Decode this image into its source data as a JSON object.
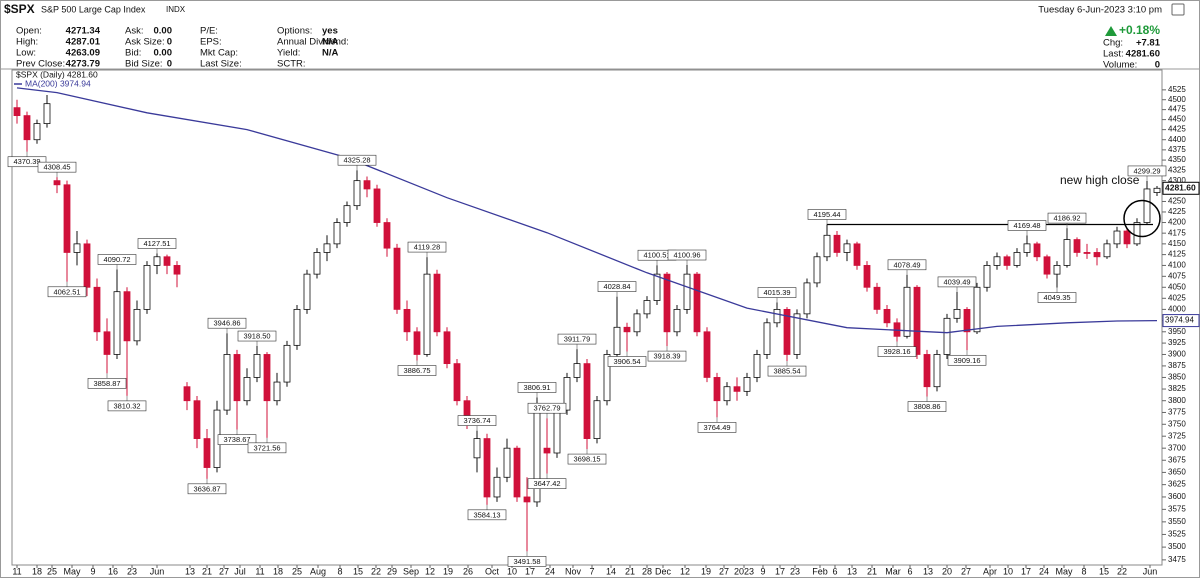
{
  "header": {
    "symbol": "$SPX",
    "name": "S&P 500 Large Cap Index",
    "exchange": "INDX",
    "datetime": "Tuesday  6-Jun-2023  3:10 pm",
    "columns": [
      [
        {
          "label": "Open:",
          "value": "4271.34"
        },
        {
          "label": "High:",
          "value": "4287.01"
        },
        {
          "label": "Low:",
          "value": "4263.09"
        },
        {
          "label": "Prev Close:",
          "value": "4273.79"
        }
      ],
      [
        {
          "label": "Ask:",
          "value": "0.00"
        },
        {
          "label": "Ask Size:",
          "value": "0"
        },
        {
          "label": "Bid:",
          "value": "0.00"
        },
        {
          "label": "Bid Size:",
          "value": "0"
        }
      ],
      [
        {
          "label": "P/E:"
        },
        {
          "label": "EPS:"
        },
        {
          "label": "Mkt Cap:"
        },
        {
          "label": "Last Size:"
        }
      ],
      [
        {
          "label": "Options:",
          "value": "yes"
        },
        {
          "label": "Annual Dividend:",
          "value": "N/A"
        },
        {
          "label": "Yield:",
          "value": "N/A"
        },
        {
          "label": "SCTR:"
        }
      ]
    ],
    "change_pct": "+0.18%",
    "quote": [
      {
        "label": "Chg:",
        "value": "+7.81"
      },
      {
        "label": "Last:",
        "value": "4281.60"
      },
      {
        "label": "Volume:",
        "value": "0"
      }
    ]
  },
  "chart_data": {
    "type": "candlestick",
    "name": "$SPX (Daily) 4281.60",
    "price_label": "4281.60",
    "up_color": "#ffffff",
    "down_color": "#d0103a",
    "open": [
      4480,
      4460,
      4400,
      4440,
      4300,
      4290,
      4130,
      4150,
      4050,
      3950,
      3900,
      4040,
      3930,
      4000,
      4100,
      4120,
      4100,
      3830,
      3800,
      3720,
      3660,
      3780,
      3900,
      3800,
      3850,
      3900,
      3800,
      3840,
      3920,
      4000,
      4080,
      4130,
      4150,
      4200,
      4240,
      4300,
      4280,
      4200,
      4140,
      4000,
      3950,
      3900,
      4080,
      3950,
      3880,
      3800,
      3680,
      3720,
      3600,
      3640,
      3700,
      3600,
      3590,
      3700,
      3690,
      3780,
      3850,
      3880,
      3720,
      3800,
      3900,
      3960,
      3950,
      3990,
      4020,
      4080,
      3950,
      4000,
      4080,
      3950,
      3850,
      3800,
      3830,
      3820,
      3850,
      3900,
      3970,
      4000,
      3900,
      3990,
      4060,
      4120,
      4170,
      4130,
      4150,
      4100,
      4050,
      4000,
      3970,
      3940,
      4050,
      3900,
      3830,
      3900,
      3980,
      4000,
      3950,
      4050,
      4100,
      4120,
      4100,
      4130,
      4150,
      4120,
      4080,
      4100,
      4160,
      4130,
      4130,
      4120,
      4150,
      4180,
      4150,
      4200,
      4271.34
    ],
    "high": [
      4500,
      4470,
      4450,
      4512,
      4308.45,
      4300,
      4180,
      4160,
      4070,
      3980,
      4090.72,
      4050,
      4020,
      4110,
      4127.51,
      4125,
      4110,
      3840,
      3810,
      3740,
      3800,
      3946.86,
      3910,
      3870,
      3918.5,
      3905,
      3860,
      3930,
      4010,
      4090,
      4140,
      4170,
      4210,
      4250,
      4325.28,
      4310,
      4290,
      4210,
      4150,
      4020,
      3960,
      4119.28,
      4090,
      3960,
      3890,
      3810,
      3736.74,
      3730,
      3660,
      3720,
      3705,
      3640,
      3806.91,
      3762.79,
      3790,
      3860,
      3911.79,
      3890,
      3810,
      3910,
      4028.84,
      3970,
      4000,
      4030,
      4100.51,
      4085,
      4010,
      4100.96,
      4085,
      3960,
      3860,
      3840,
      3850,
      3860,
      3910,
      3980,
      4015.39,
      4005,
      4000,
      4070,
      4130,
      4195.44,
      4180,
      4160,
      4155,
      4110,
      4060,
      4010,
      3980,
      4078.49,
      4055,
      3910,
      3910,
      3990,
      4039.49,
      4005,
      4060,
      4110,
      4130,
      4125,
      4140,
      4169.48,
      4155,
      4125,
      4110,
      4186.92,
      4165,
      4150,
      4140,
      4160,
      4190,
      4185,
      4210,
      4299.29,
      4287.01
    ],
    "low": [
      4440,
      4370.39,
      4390,
      4430,
      4270,
      4062.51,
      4100,
      4030,
      3930,
      3858.87,
      3890,
      3810.32,
      3920,
      3990,
      4080,
      4080,
      4050,
      3780,
      3700,
      3636.87,
      3650,
      3770,
      3738.67,
      3790,
      3840,
      3721.56,
      3790,
      3830,
      3910,
      3990,
      4070,
      4110,
      4140,
      4190,
      4230,
      4260,
      4190,
      4120,
      3990,
      3930,
      3886.75,
      3895,
      3940,
      3870,
      3790,
      3740,
      3650,
      3584.13,
      3590,
      3630,
      3590,
      3491.58,
      3580,
      3647.42,
      3680,
      3770,
      3840,
      3698.15,
      3710,
      3790,
      3895,
      3906.54,
      3940,
      3980,
      4010,
      3918.39,
      3940,
      3990,
      3940,
      3840,
      3764.49,
      3790,
      3800,
      3810,
      3840,
      3890,
      3960,
      3885.54,
      3890,
      3980,
      4050,
      4110,
      4120,
      4110,
      4090,
      4040,
      3990,
      3960,
      3928.16,
      3935,
      3890,
      3808.86,
      3820,
      3890,
      3970,
      3909.16,
      3945,
      4040,
      4090,
      4090,
      4095,
      4120,
      4110,
      4070,
      4049.35,
      4095,
      4120,
      4115,
      4100,
      4115,
      4140,
      4140,
      4145,
      4195,
      4263.09
    ],
    "close": [
      4460,
      4400,
      4440,
      4490,
      4290,
      4130,
      4150,
      4050,
      3950,
      3900,
      4040,
      3930,
      4000,
      4100,
      4120,
      4100,
      4080,
      3800,
      3720,
      3660,
      3780,
      3900,
      3800,
      3850,
      3900,
      3800,
      3840,
      3920,
      4000,
      4080,
      4130,
      4150,
      4200,
      4240,
      4300,
      4280,
      4200,
      4140,
      4000,
      3950,
      3900,
      4080,
      3950,
      3880,
      3800,
      3760,
      3720,
      3600,
      3640,
      3700,
      3600,
      3590,
      3780,
      3690,
      3780,
      3850,
      3880,
      3720,
      3800,
      3900,
      3960,
      3950,
      3990,
      4020,
      4080,
      3950,
      4000,
      4080,
      3950,
      3850,
      3800,
      3830,
      3820,
      3850,
      3900,
      3970,
      4000,
      3900,
      3990,
      4060,
      4120,
      4170,
      4130,
      4150,
      4100,
      4050,
      4000,
      3970,
      3940,
      4050,
      3900,
      3830,
      3900,
      3980,
      4000,
      3950,
      4050,
      4100,
      4120,
      4100,
      4130,
      4150,
      4120,
      4080,
      4100,
      4160,
      4130,
      4130,
      4120,
      4150,
      4180,
      4150,
      4200,
      4280,
      4281.6
    ],
    "ma": {
      "name": "MA(200) 3974.94",
      "price_label": "3974.94",
      "color": "#3a3a9a",
      "x": [
        0,
        4,
        13,
        23,
        33,
        43,
        53,
        63,
        73,
        83,
        93,
        98,
        105,
        110,
        114
      ],
      "values": [
        4530,
        4518,
        4467,
        4425,
        4356,
        4259,
        4176,
        4083,
        4003,
        3959,
        3948,
        3962,
        3970,
        3974,
        3974.94
      ]
    },
    "annotations": [
      {
        "x": 1,
        "value": 4370.39
      },
      {
        "x": 4,
        "value": 4308.45
      },
      {
        "x": 5,
        "value": 4062.51
      },
      {
        "x": 9,
        "value": 3858.87
      },
      {
        "x": 10,
        "value": 4090.72
      },
      {
        "x": 11,
        "value": 3810.32
      },
      {
        "x": 14,
        "value": 4127.51
      },
      {
        "x": 19,
        "value": 3636.87
      },
      {
        "x": 21,
        "value": 3946.86
      },
      {
        "x": 22,
        "value": 3738.67
      },
      {
        "x": 24,
        "value": 3918.5,
        "label": "3918.50"
      },
      {
        "x": 25,
        "value": 3721.56
      },
      {
        "x": 34,
        "value": 4325.28
      },
      {
        "x": 40,
        "value": 3886.75
      },
      {
        "x": 41,
        "value": 4119.28
      },
      {
        "x": 46,
        "value": 3736.74
      },
      {
        "x": 47,
        "value": 3584.13
      },
      {
        "x": 51,
        "value": 3491.58
      },
      {
        "x": 52,
        "value": 3806.91
      },
      {
        "x": 53,
        "value": 3762.79
      },
      {
        "x": 53,
        "value": 3647.42
      },
      {
        "x": 56,
        "value": 3911.79
      },
      {
        "x": 57,
        "value": 3698.15
      },
      {
        "x": 60,
        "value": 4028.84
      },
      {
        "x": 61,
        "value": 3906.54
      },
      {
        "x": 64,
        "value": 4100.51
      },
      {
        "x": 65,
        "value": 3918.39
      },
      {
        "x": 67,
        "value": 4100.96
      },
      {
        "x": 70,
        "value": 3764.49
      },
      {
        "x": 76,
        "value": 4015.39
      },
      {
        "x": 77,
        "value": 3885.54
      },
      {
        "x": 81,
        "value": 4195.44
      },
      {
        "x": 88,
        "value": 3928.16
      },
      {
        "x": 89,
        "value": 4078.49
      },
      {
        "x": 91,
        "value": 3808.86
      },
      {
        "x": 94,
        "value": 4039.49
      },
      {
        "x": 95,
        "value": 3909.16
      },
      {
        "x": 101,
        "value": 4169.48
      },
      {
        "x": 104,
        "value": 4049.35
      },
      {
        "x": 105,
        "value": 4186.92
      },
      {
        "x": 113,
        "value": 4299.29
      }
    ],
    "annotation_text": "new high close",
    "log": true,
    "grid": false,
    "xlim": [
      -0.5,
      114.5
    ],
    "ylim": [
      3465,
      4545
    ],
    "yticks": [
      3475,
      3500,
      3525,
      3550,
      3575,
      3600,
      3625,
      3650,
      3675,
      3700,
      3725,
      3750,
      3775,
      3800,
      3825,
      3850,
      3875,
      3900,
      3925,
      3950,
      3975,
      4000,
      4025,
      4050,
      4075,
      4100,
      4125,
      4150,
      4175,
      4200,
      4225,
      4250,
      4275,
      4300,
      4325,
      4350,
      4375,
      4400,
      4425,
      4450,
      4475,
      4500,
      4525
    ],
    "xticks": [
      {
        "value": 0,
        "label": "11"
      },
      {
        "value": 2,
        "label": "18"
      },
      {
        "value": 3.5,
        "label": "25"
      },
      {
        "value": 5.5,
        "label": "May"
      },
      {
        "value": 7.6,
        "label": "9"
      },
      {
        "value": 9.6,
        "label": "16"
      },
      {
        "value": 11.5,
        "label": "23"
      },
      {
        "value": 14,
        "label": "Jun"
      },
      {
        "value": 17.3,
        "label": "13"
      },
      {
        "value": 19,
        "label": "21"
      },
      {
        "value": 20.7,
        "label": "27"
      },
      {
        "value": 22.3,
        "label": "Jul"
      },
      {
        "value": 24.3,
        "label": "11"
      },
      {
        "value": 26.1,
        "label": "18"
      },
      {
        "value": 28,
        "label": "25"
      },
      {
        "value": 30.1,
        "label": "Aug"
      },
      {
        "value": 32.3,
        "label": "8"
      },
      {
        "value": 34.1,
        "label": "15"
      },
      {
        "value": 35.9,
        "label": "22"
      },
      {
        "value": 37.5,
        "label": "29"
      },
      {
        "value": 39.4,
        "label": "Sep"
      },
      {
        "value": 41.3,
        "label": "12"
      },
      {
        "value": 43.1,
        "label": "19"
      },
      {
        "value": 45.1,
        "label": "26"
      },
      {
        "value": 47.5,
        "label": "Oct"
      },
      {
        "value": 49.5,
        "label": "10"
      },
      {
        "value": 51.3,
        "label": "17"
      },
      {
        "value": 53.3,
        "label": "24"
      },
      {
        "value": 55.6,
        "label": "Nov"
      },
      {
        "value": 57.5,
        "label": "7"
      },
      {
        "value": 59.4,
        "label": "14"
      },
      {
        "value": 61.3,
        "label": "21"
      },
      {
        "value": 63,
        "label": "28"
      },
      {
        "value": 64.6,
        "label": "Dec"
      },
      {
        "value": 66.8,
        "label": "12"
      },
      {
        "value": 68.9,
        "label": "19"
      },
      {
        "value": 70.7,
        "label": "27"
      },
      {
        "value": 72.7,
        "label": "2023"
      },
      {
        "value": 74.6,
        "label": "9"
      },
      {
        "value": 76.3,
        "label": "17"
      },
      {
        "value": 77.8,
        "label": "23"
      },
      {
        "value": 80.3,
        "label": "Feb"
      },
      {
        "value": 81.8,
        "label": "6"
      },
      {
        "value": 83.5,
        "label": "13"
      },
      {
        "value": 85.5,
        "label": "21"
      },
      {
        "value": 87.6,
        "label": "Mar"
      },
      {
        "value": 89.3,
        "label": "6"
      },
      {
        "value": 91.1,
        "label": "13"
      },
      {
        "value": 93,
        "label": "20"
      },
      {
        "value": 94.9,
        "label": "27"
      },
      {
        "value": 97.3,
        "label": "Apr"
      },
      {
        "value": 99.1,
        "label": "10"
      },
      {
        "value": 100.9,
        "label": "17"
      },
      {
        "value": 102.7,
        "label": "24"
      },
      {
        "value": 104.7,
        "label": "May"
      },
      {
        "value": 106.7,
        "label": "8"
      },
      {
        "value": 108.7,
        "label": "15"
      },
      {
        "value": 110.5,
        "label": "22"
      },
      {
        "value": 113.3,
        "label": "Jun"
      }
    ]
  }
}
